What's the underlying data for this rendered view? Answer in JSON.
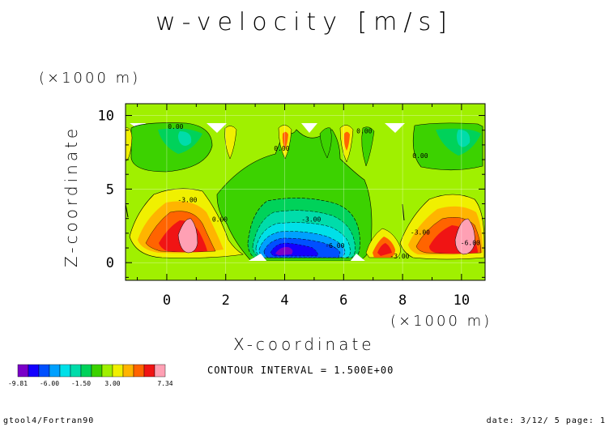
{
  "chart_data": {
    "type": "heatmap",
    "title": "w-velocity [m/s]",
    "xlabel": "X-coordinate",
    "ylabel": "Z-coordinate",
    "x_unit": "(×1000 m)",
    "y_unit": "(×1000 m)",
    "xlim": [
      -1.4,
      10.8
    ],
    "ylim": [
      -1.2,
      10.8
    ],
    "xticks": [
      "0",
      "2",
      "4",
      "6",
      "8",
      "10"
    ],
    "yticks": [
      "0",
      "5",
      "10"
    ],
    "xtick_values": [
      0,
      2,
      4,
      6,
      8,
      10
    ],
    "ytick_values": [
      0,
      5,
      10
    ],
    "grid": true,
    "contour_interval": "CONTOUR INTERVAL = 1.500E+00",
    "colorbar": {
      "min_label": "-9.81",
      "max_label": "7.34",
      "tick_labels": [
        "-6.00",
        "-1.50",
        "3.00"
      ],
      "colors": [
        "#7a00c8",
        "#1400ff",
        "#0050ff",
        "#00a0ff",
        "#00e0e8",
        "#00dcaa",
        "#00d25a",
        "#3cd200",
        "#a0f000",
        "#f0f000",
        "#ffb400",
        "#ff6400",
        "#f01414",
        "#ffa0b4"
      ]
    },
    "contour_labels": [
      {
        "text": "0.00",
        "x": 0.3,
        "z": 9.1
      },
      {
        "text": "0.00",
        "x": 3.9,
        "z": 7.6
      },
      {
        "text": "0.00",
        "x": 6.7,
        "z": 8.8
      },
      {
        "text": "0.00",
        "x": 8.6,
        "z": 7.1
      },
      {
        "text": "0.00",
        "x": 1.8,
        "z": 2.8
      },
      {
        "text": "-3.00",
        "x": 0.7,
        "z": 4.1
      },
      {
        "text": "-3.00",
        "x": 4.9,
        "z": 2.8
      },
      {
        "text": "-6.00",
        "x": 5.7,
        "z": 1.0
      },
      {
        "text": "-3.00",
        "x": 8.6,
        "z": 1.9
      },
      {
        "text": "-6.00",
        "x": 10.3,
        "z": 1.2
      },
      {
        "text": "-3.00",
        "x": 7.9,
        "z": 0.3
      }
    ]
  },
  "footer": {
    "left": "gtool4/Fortran90",
    "right": "date: 3/12/ 5 page: 1"
  }
}
